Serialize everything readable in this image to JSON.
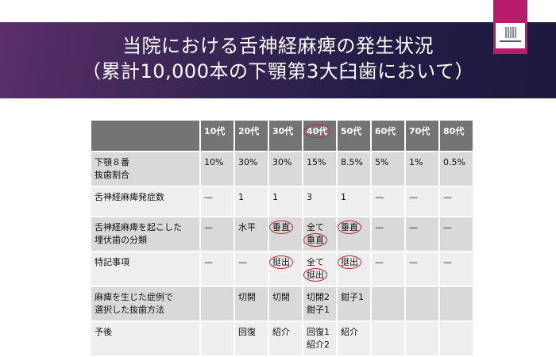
{
  "title_lines": [
    "当院における舌神経麻痺の発生状況",
    "（累計10,000本の下顎第3大臼歯において）"
  ],
  "header": [
    "",
    "10代",
    "20代",
    "30代",
    "40代",
    "50代",
    "60代",
    "70代",
    "80代"
  ],
  "circled_header_index": 4,
  "rows": [
    {
      "label": [
        "下顎８番",
        "抜歯割合"
      ],
      "cells": [
        [
          "10%"
        ],
        [
          "30%"
        ],
        [
          "30%"
        ],
        [
          "15%"
        ],
        [
          "8.5%"
        ],
        [
          "5%"
        ],
        [
          "1%"
        ],
        [
          "0.5%"
        ]
      ]
    },
    {
      "label": [
        "舌神経麻痺発症数"
      ],
      "cells": [
        [
          "—"
        ],
        [
          "1"
        ],
        [
          "1"
        ],
        [
          "3"
        ],
        [
          "1"
        ],
        [
          "—"
        ],
        [
          "—"
        ],
        [
          "—"
        ]
      ]
    },
    {
      "label": [
        "舌神経麻痺を起こした",
        "埋伏歯の分類"
      ],
      "cells": [
        [
          "—"
        ],
        [
          "水平"
        ],
        [
          "垂直"
        ],
        [
          "全て",
          "垂直"
        ],
        [
          "垂直"
        ],
        [
          "—"
        ],
        [
          "—"
        ],
        [
          "—"
        ]
      ],
      "circled": [
        "2.0",
        "3.1",
        "4.0"
      ]
    },
    {
      "label": [
        "特記事項"
      ],
      "cells": [
        [
          "—"
        ],
        [
          "—"
        ],
        [
          "挺出"
        ],
        [
          "全て",
          "挺出"
        ],
        [
          "挺出"
        ],
        [
          "—"
        ],
        [
          "—"
        ],
        [
          "—"
        ]
      ],
      "circled": [
        "2.0",
        "3.1",
        "4.0"
      ]
    },
    {
      "label": [
        "麻痺を生じた症例で",
        "選択した抜歯方法"
      ],
      "cells": [
        [
          ""
        ],
        [
          "切開"
        ],
        [
          "切開"
        ],
        [
          "切開2",
          "鉗子1"
        ],
        [
          "鉗子1"
        ],
        [
          ""
        ],
        [
          ""
        ],
        [
          ""
        ]
      ]
    },
    {
      "label": [
        "予後"
      ],
      "cells": [
        [
          ""
        ],
        [
          "回復"
        ],
        [
          "紹介"
        ],
        [
          "回復1",
          "紹介2"
        ],
        [
          "紹介"
        ],
        [
          ""
        ],
        [
          ""
        ],
        [
          ""
        ]
      ]
    }
  ],
  "colors": {
    "band": "#221c45",
    "logo": "#b81d6b",
    "circle": "#c0282d",
    "header_cell": "#747474"
  }
}
